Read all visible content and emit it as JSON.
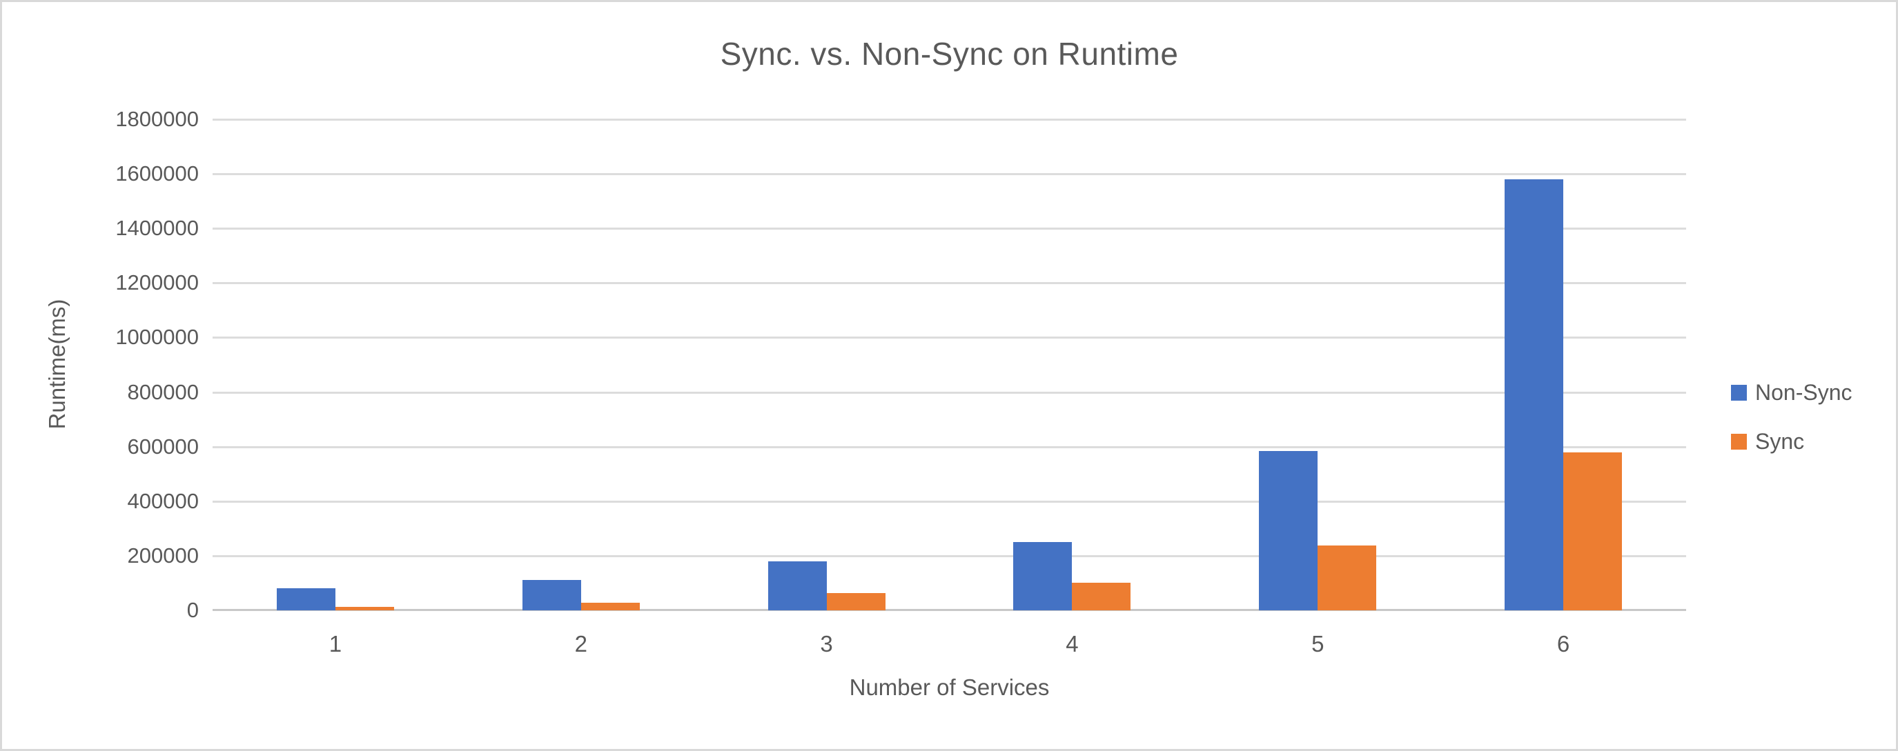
{
  "chart_data": {
    "type": "bar",
    "title": "Sync. vs. Non-Sync on Runtime",
    "xlabel": "Number of Services",
    "ylabel": "Runtime(ms)",
    "categories": [
      "1",
      "2",
      "3",
      "4",
      "5",
      "6"
    ],
    "series": [
      {
        "name": "Non-Sync",
        "color": "#4472C4",
        "values": [
          82000,
          111000,
          180000,
          250000,
          583000,
          1580000
        ]
      },
      {
        "name": "Sync",
        "color": "#ED7D31",
        "values": [
          13000,
          27000,
          63000,
          100000,
          238000,
          580000
        ]
      }
    ],
    "ylim": [
      0,
      1800000
    ],
    "ytick_step": 200000,
    "yticks": [
      0,
      200000,
      400000,
      600000,
      800000,
      1000000,
      1200000,
      1400000,
      1600000,
      1800000
    ],
    "grid": true,
    "legend_position": "right"
  },
  "colors": {
    "text": "#595959",
    "gridline": "#dcdcdc",
    "axis_line": "#c8c8c8",
    "frame_border": "#d9d9d9",
    "background": "#ffffff"
  }
}
